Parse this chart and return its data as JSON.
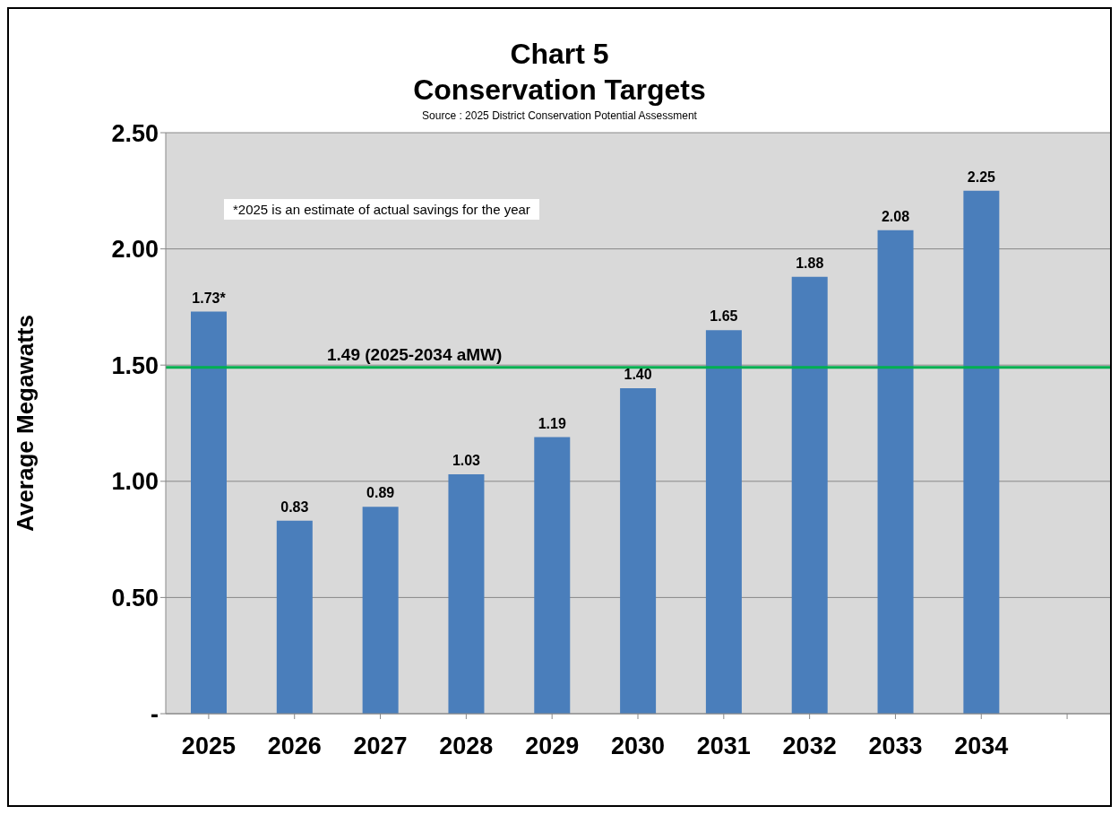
{
  "chart_data": {
    "type": "bar",
    "title": "Chart 5\nConservation Targets",
    "subtitle": "Source : 2025 District Conservation Potential Assessment",
    "ylabel": "Average Megawatts",
    "categories": [
      "2025",
      "2026",
      "2027",
      "2028",
      "2029",
      "2030",
      "2031",
      "2032",
      "2033",
      "2034",
      null
    ],
    "values": [
      1.73,
      0.83,
      0.89,
      1.03,
      1.19,
      1.4,
      1.65,
      1.88,
      2.08,
      2.25,
      null
    ],
    "value_labels": [
      "1.73*",
      "0.83",
      "0.89",
      "1.03",
      "1.19",
      "1.40",
      "1.65",
      "1.88",
      "2.08",
      "2.25",
      null
    ],
    "color": "#4a7ebb",
    "ylim": [
      0,
      2.5
    ],
    "yticks": [
      {
        "value": 0,
        "label": "-"
      },
      {
        "value": 0.5,
        "label": "0.50"
      },
      {
        "value": 1,
        "label": "1.00"
      },
      {
        "value": 1.5,
        "label": "1.50"
      },
      {
        "value": 2,
        "label": "2.00"
      },
      {
        "value": 2.5,
        "label": "2.50"
      }
    ],
    "grid": "y",
    "ref_lines": [
      {
        "axis": "y",
        "value": 1.49,
        "label": "1.49 (2025-2034 aMW)",
        "color": "#00b050"
      }
    ],
    "annotations": [
      "*2025 is an estimate of actual savings for the year"
    ]
  }
}
